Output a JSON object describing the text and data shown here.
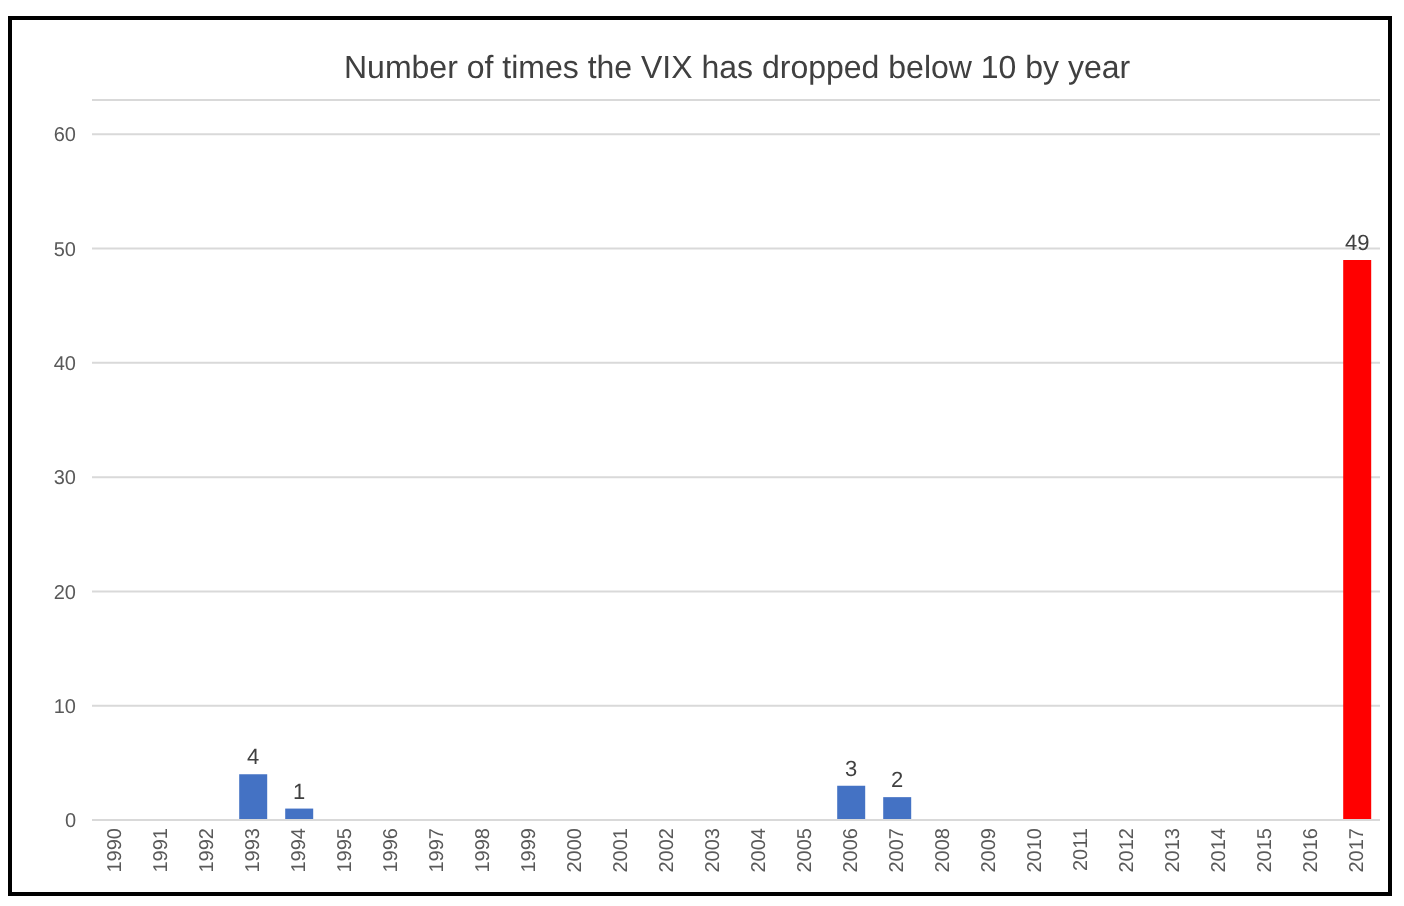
{
  "chart_data": {
    "type": "bar",
    "title": "Number of times the VIX has dropped below 10 by year",
    "categories": [
      "1990",
      "1991",
      "1992",
      "1993",
      "1994",
      "1995",
      "1996",
      "1997",
      "1998",
      "1999",
      "2000",
      "2001",
      "2002",
      "2003",
      "2004",
      "2005",
      "2006",
      "2007",
      "2008",
      "2009",
      "2010",
      "2011",
      "2012",
      "2013",
      "2014",
      "2015",
      "2016",
      "2017"
    ],
    "values": [
      0,
      0,
      0,
      4,
      1,
      0,
      0,
      0,
      0,
      0,
      0,
      0,
      0,
      0,
      0,
      0,
      3,
      2,
      0,
      0,
      0,
      0,
      0,
      0,
      0,
      0,
      0,
      49
    ],
    "colors": [
      "#4472c4",
      "#4472c4",
      "#4472c4",
      "#4472c4",
      "#4472c4",
      "#4472c4",
      "#4472c4",
      "#4472c4",
      "#4472c4",
      "#4472c4",
      "#4472c4",
      "#4472c4",
      "#4472c4",
      "#4472c4",
      "#4472c4",
      "#4472c4",
      "#4472c4",
      "#4472c4",
      "#4472c4",
      "#4472c4",
      "#4472c4",
      "#4472c4",
      "#4472c4",
      "#4472c4",
      "#4472c4",
      "#4472c4",
      "#4472c4",
      "#ff0000"
    ],
    "value_labels": [
      null,
      null,
      null,
      "4",
      "1",
      null,
      null,
      null,
      null,
      null,
      null,
      null,
      null,
      null,
      null,
      null,
      "3",
      "2",
      null,
      null,
      null,
      null,
      null,
      null,
      null,
      null,
      null,
      "49"
    ],
    "ylim": [
      0,
      63
    ],
    "yticks": [
      0,
      10,
      20,
      30,
      40,
      50,
      60
    ],
    "grid": "y"
  }
}
